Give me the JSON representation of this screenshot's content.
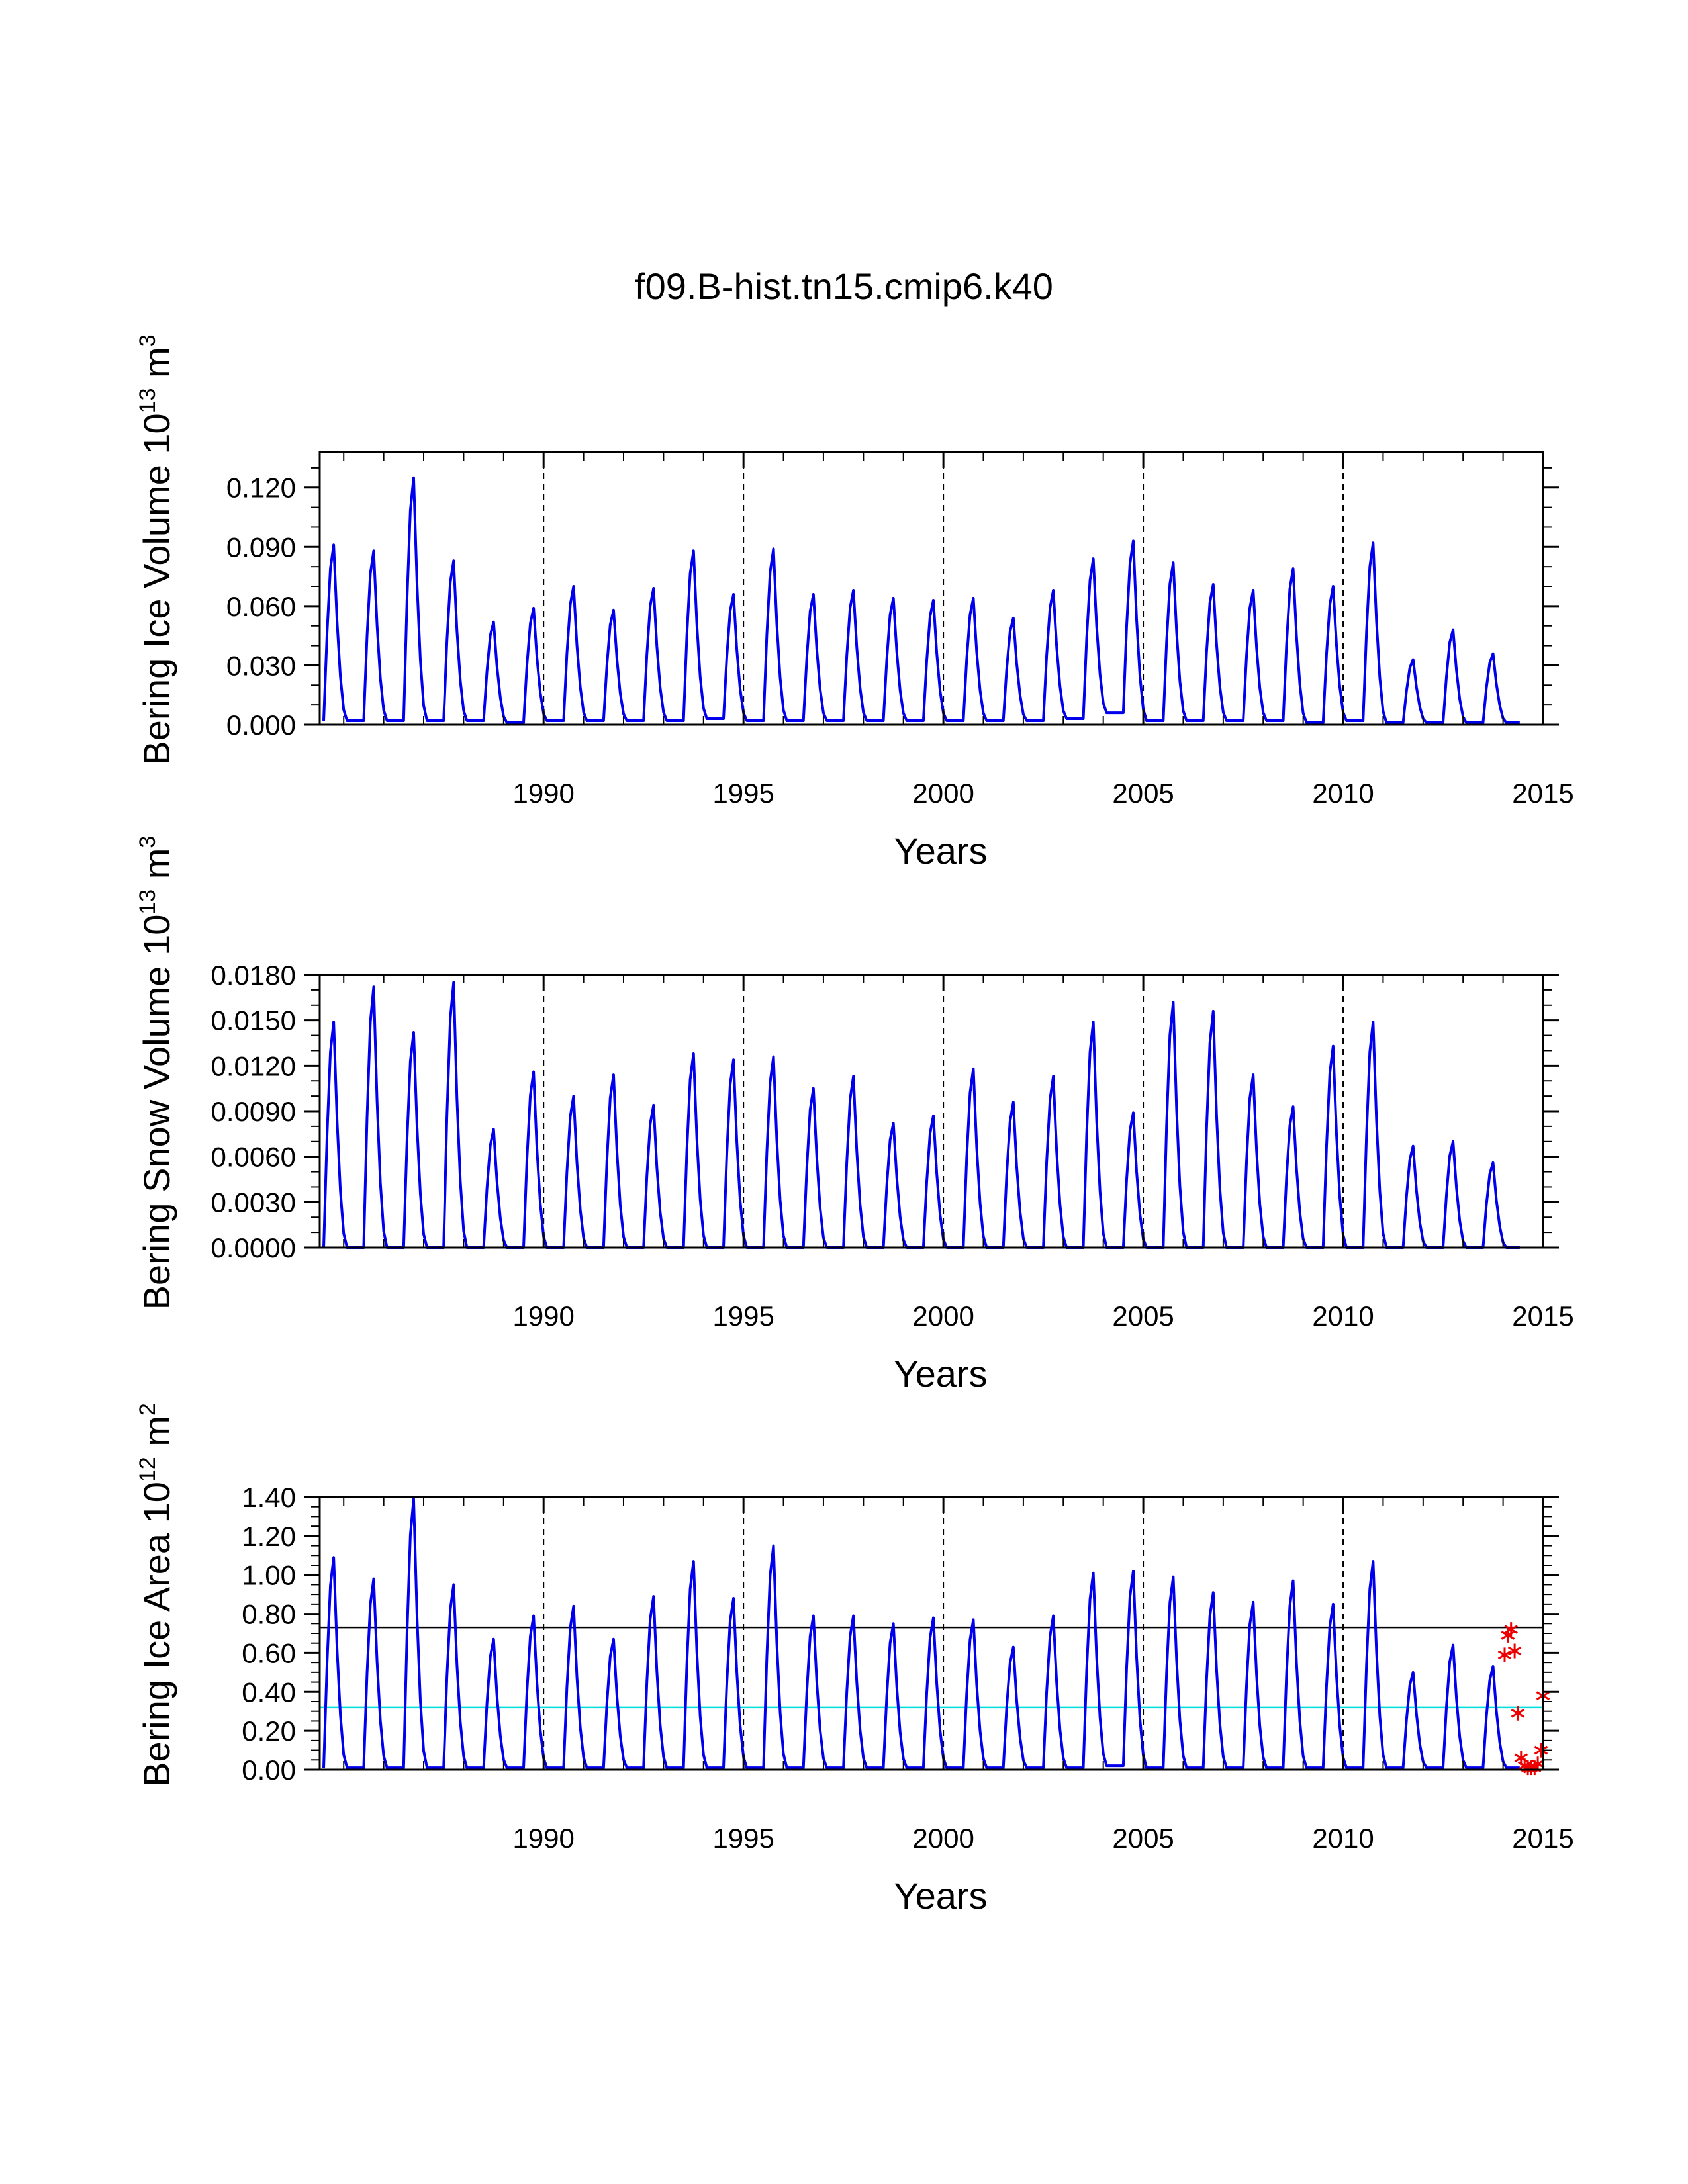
{
  "chart_data": {
    "type": "line",
    "title": "f09.B-hist.tn15.cmip6.k40",
    "panels": [
      {
        "id": "ice-volume",
        "ylabel": "Bering Ice Volume 10",
        "ylabel_exp": "13",
        "ylabel_unit": " m",
        "ylabel_unit_exp": "3",
        "xlabel": "Years",
        "xlim": [
          1984.4,
          2015.0
        ],
        "ylim": [
          0,
          0.138
        ],
        "yticks": [
          0.0,
          0.03,
          0.06,
          0.09,
          0.12
        ],
        "ytick_labels": [
          "0.000",
          "0.030",
          "0.060",
          "0.090",
          "0.120"
        ],
        "yminor_step": 0.01,
        "xticks": [
          1990,
          1995,
          2000,
          2005,
          2010,
          2015
        ],
        "xtick_labels": [
          "1990",
          "1995",
          "2000",
          "2005",
          "2010",
          "2015"
        ],
        "vlines": [
          1990,
          1995,
          2000,
          2005,
          2010
        ],
        "hlines": [],
        "series": [
          {
            "name": "ice volume",
            "color": "#0000ee",
            "start_year": 1984.5,
            "peak_month": 3,
            "peaks": [
              0.091,
              0.088,
              0.125,
              0.083,
              0.052,
              0.059,
              0.07,
              0.058,
              0.069,
              0.088,
              0.066,
              0.089,
              0.066,
              0.068,
              0.064,
              0.063,
              0.064,
              0.054,
              0.068,
              0.084,
              0.093,
              0.082,
              0.071,
              0.068,
              0.079,
              0.07,
              0.092,
              0.033,
              0.048,
              0.036
            ],
            "troughs": [
              0.002,
              0.002,
              0.002,
              0.002,
              0.001,
              0.002,
              0.002,
              0.002,
              0.002,
              0.003,
              0.002,
              0.002,
              0.002,
              0.002,
              0.002,
              0.002,
              0.002,
              0.002,
              0.003,
              0.006,
              0.002,
              0.002,
              0.002,
              0.002,
              0.001,
              0.002,
              0.001,
              0.001,
              0.001,
              0.001
            ]
          }
        ],
        "markers": []
      },
      {
        "id": "snow-volume",
        "ylabel": "Bering Snow Volume 10",
        "ylabel_exp": "13",
        "ylabel_unit": " m",
        "ylabel_unit_exp": "3",
        "xlabel": "Years",
        "xlim": [
          1984.4,
          2015.0
        ],
        "ylim": [
          0,
          0.018
        ],
        "yticks": [
          0.0,
          0.003,
          0.006,
          0.009,
          0.012,
          0.015,
          0.018
        ],
        "ytick_labels": [
          "0.0000",
          "0.0030",
          "0.0060",
          "0.0090",
          "0.0120",
          "0.0150",
          "0.0180"
        ],
        "yminor_step": 0.001,
        "xticks": [
          1990,
          1995,
          2000,
          2005,
          2010,
          2015
        ],
        "xtick_labels": [
          "1990",
          "1995",
          "2000",
          "2005",
          "2010",
          "2015"
        ],
        "vlines": [
          1990,
          1995,
          2000,
          2005,
          2010
        ],
        "hlines": [],
        "series": [
          {
            "name": "snow volume",
            "color": "#0000ee",
            "start_year": 1984.5,
            "peak_month": 3,
            "peaks": [
              0.0149,
              0.0172,
              0.0142,
              0.0175,
              0.0078,
              0.0116,
              0.01,
              0.0114,
              0.0094,
              0.0128,
              0.0124,
              0.0126,
              0.0105,
              0.0113,
              0.0082,
              0.0087,
              0.0118,
              0.0096,
              0.0113,
              0.0149,
              0.0089,
              0.0162,
              0.0156,
              0.0114,
              0.0093,
              0.0133,
              0.0149,
              0.0067,
              0.007,
              0.0056
            ],
            "troughs": [
              0,
              0,
              0,
              0,
              0,
              0,
              0,
              0,
              0,
              0,
              0,
              0,
              0,
              0,
              0,
              0,
              0,
              0,
              0,
              0,
              0,
              0,
              0,
              0,
              0,
              0,
              0,
              0,
              0,
              0
            ]
          }
        ],
        "markers": []
      },
      {
        "id": "ice-area",
        "ylabel": "Bering Ice Area 10",
        "ylabel_exp": "12",
        "ylabel_unit": " m",
        "ylabel_unit_exp": "2",
        "xlabel": "Years",
        "xlim": [
          1984.4,
          2015.0
        ],
        "ylim": [
          0,
          1.4
        ],
        "yticks": [
          0.0,
          0.2,
          0.4,
          0.6,
          0.8,
          1.0,
          1.2,
          1.4
        ],
        "ytick_labels": [
          "0.00",
          "0.20",
          "0.40",
          "0.60",
          "0.80",
          "1.00",
          "1.20",
          "1.40"
        ],
        "yminor_step": 0.05,
        "xticks": [
          1990,
          1995,
          2000,
          2005,
          2010,
          2015
        ],
        "xtick_labels": [
          "1990",
          "1995",
          "2000",
          "2005",
          "2010",
          "2015"
        ],
        "vlines": [
          1990,
          1995,
          2000,
          2005,
          2010
        ],
        "hlines": [
          {
            "name": "reference-line-upper",
            "y": 0.73,
            "color": "#000000"
          },
          {
            "name": "reference-line-cyan",
            "y": 0.32,
            "color": "#00dddd"
          }
        ],
        "series": [
          {
            "name": "ice area",
            "color": "#0000ee",
            "start_year": 1984.5,
            "peak_month": 3,
            "peaks": [
              1.09,
              0.98,
              1.39,
              0.95,
              0.67,
              0.79,
              0.84,
              0.67,
              0.89,
              1.07,
              0.88,
              1.15,
              0.79,
              0.79,
              0.75,
              0.78,
              0.77,
              0.63,
              0.79,
              1.01,
              1.02,
              0.99,
              0.91,
              0.86,
              0.97,
              0.85,
              1.07,
              0.5,
              0.64,
              0.53
            ],
            "troughs": [
              0.01,
              0.01,
              0.01,
              0.01,
              0.01,
              0.01,
              0.01,
              0.01,
              0.01,
              0.01,
              0.01,
              0.01,
              0.01,
              0.01,
              0.01,
              0.01,
              0.01,
              0.01,
              0.01,
              0.02,
              0.01,
              0.01,
              0.01,
              0.01,
              0.01,
              0.01,
              0.01,
              0.01,
              0.01,
              0.01
            ]
          }
        ],
        "markers": [
          {
            "x": 2014.04,
            "y": 0.59
          },
          {
            "x": 2014.12,
            "y": 0.69
          },
          {
            "x": 2014.2,
            "y": 0.72
          },
          {
            "x": 2014.29,
            "y": 0.61
          },
          {
            "x": 2014.37,
            "y": 0.29
          },
          {
            "x": 2014.45,
            "y": 0.06
          },
          {
            "x": 2014.54,
            "y": 0.02
          },
          {
            "x": 2014.62,
            "y": 0.01
          },
          {
            "x": 2014.7,
            "y": 0.01
          },
          {
            "x": 2014.79,
            "y": 0.01
          },
          {
            "x": 2014.87,
            "y": 0.03
          },
          {
            "x": 2014.95,
            "y": 0.1
          },
          {
            "x": 2015.0,
            "y": 0.38
          }
        ],
        "marker_color": "#ee0000"
      }
    ]
  }
}
